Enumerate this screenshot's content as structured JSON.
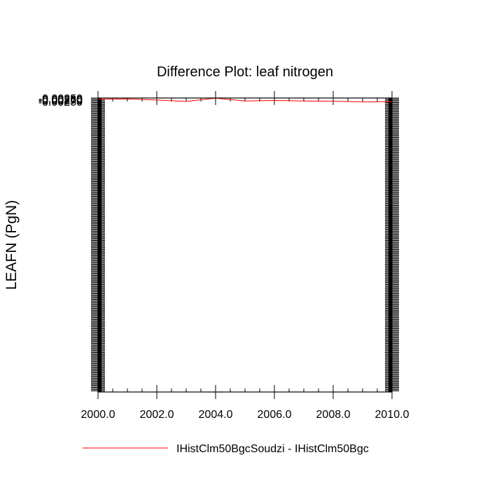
{
  "chart_data": {
    "type": "line",
    "title": "Difference Plot: leaf nitrogen",
    "xlabel": "",
    "ylabel": "LEAFN  (PgN)",
    "xlim": [
      2000.0,
      2010.0
    ],
    "ylim": [
      -0.0285,
      -0.0025
    ],
    "x_ticks": [
      2000.0,
      2002.0,
      2004.0,
      2006.0,
      2008.0,
      2010.0
    ],
    "x_tick_labels": [
      "2000.0",
      "2002.0",
      "2004.0",
      "2006.0",
      "2008.0",
      "2010.0"
    ],
    "y_ticks": [
      -0.0025,
      -0.0026,
      -0.0027,
      -0.0028
    ],
    "y_tick_labels": [
      "-0.00250",
      "-0.00260",
      "-0.00270",
      "-0.00280"
    ],
    "grid": false,
    "legend_position": "bottom",
    "series": [
      {
        "name": "IHistClm50BgcSoudzi - IHistClm50Bgc",
        "color": "#ff0000",
        "x": [
          2000,
          2001,
          2002,
          2003,
          2004,
          2005,
          2006,
          2007,
          2008,
          2009,
          2010
        ],
        "values": [
          -0.002597,
          -0.002584,
          -0.002677,
          -0.0028,
          -0.002517,
          -0.002765,
          -0.002713,
          -0.002763,
          -0.002787,
          -0.002845,
          -0.002822
        ]
      }
    ]
  }
}
